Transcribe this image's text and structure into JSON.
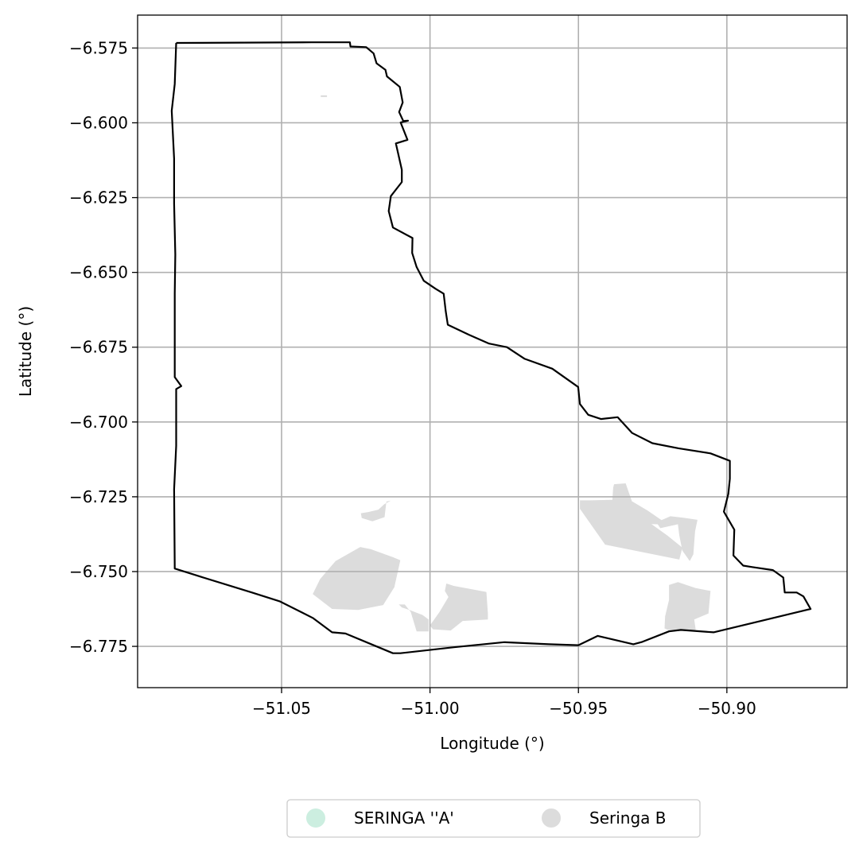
{
  "chart_data": {
    "type": "map",
    "xlabel": "Longitude (°)",
    "ylabel": "Latitude (°)",
    "xlim": [
      -51.0985,
      -50.8595
    ],
    "ylim": [
      -6.7888,
      -6.564
    ],
    "grid": true,
    "x_ticks": [
      {
        "value": -51.05,
        "label": "−51.05"
      },
      {
        "value": -51.0,
        "label": "−51.00"
      },
      {
        "value": -50.95,
        "label": "−50.95"
      },
      {
        "value": -50.9,
        "label": "−50.90"
      }
    ],
    "y_ticks": [
      {
        "value": -6.575,
        "label": "−6.575"
      },
      {
        "value": -6.6,
        "label": "−6.600"
      },
      {
        "value": -6.625,
        "label": "−6.625"
      },
      {
        "value": -6.65,
        "label": "−6.650"
      },
      {
        "value": -6.675,
        "label": "−6.675"
      },
      {
        "value": -6.7,
        "label": "−6.700"
      },
      {
        "value": -6.725,
        "label": "−6.725"
      },
      {
        "value": -6.75,
        "label": "−6.750"
      },
      {
        "value": -6.775,
        "label": "−6.775"
      }
    ],
    "legend": {
      "placement": "bottom-center",
      "entries": [
        {
          "label": "SERINGA ''A'",
          "color": "#cceee0"
        },
        {
          "label": "Seringa B",
          "color": "#dcdcdc"
        }
      ]
    },
    "boundary": [
      [
        -51.0855,
        -6.5733
      ],
      [
        -51.04,
        -6.5731
      ],
      [
        -51.027,
        -6.5731
      ],
      [
        -51.0268,
        -6.5745
      ],
      [
        -51.0215,
        -6.5747
      ],
      [
        -51.019,
        -6.5768
      ],
      [
        -51.018,
        -6.5801
      ],
      [
        -51.015,
        -6.5823
      ],
      [
        -51.0145,
        -6.5845
      ],
      [
        -51.0102,
        -6.588
      ],
      [
        -51.0092,
        -6.5932
      ],
      [
        -51.0104,
        -6.5964
      ],
      [
        -51.009,
        -6.5994
      ],
      [
        -51.0074,
        -6.5993
      ],
      [
        -51.0099,
        -6.5999
      ],
      [
        -51.0076,
        -6.6057
      ],
      [
        -51.0115,
        -6.6069
      ],
      [
        -51.0095,
        -6.6157
      ],
      [
        -51.0095,
        -6.6198
      ],
      [
        -51.0132,
        -6.6245
      ],
      [
        -51.0139,
        -6.6295
      ],
      [
        -51.0125,
        -6.635
      ],
      [
        -51.0059,
        -6.6385
      ],
      [
        -51.006,
        -6.6435
      ],
      [
        -51.0045,
        -6.6482
      ],
      [
        -51.0021,
        -6.6528
      ],
      [
        -50.9981,
        -6.6555
      ],
      [
        -50.9954,
        -6.6571
      ],
      [
        -50.9947,
        -6.663
      ],
      [
        -50.994,
        -6.6675
      ],
      [
        -50.9868,
        -6.6709
      ],
      [
        -50.9801,
        -6.6738
      ],
      [
        -50.9741,
        -6.675
      ],
      [
        -50.9681,
        -6.6789
      ],
      [
        -50.9588,
        -6.6822
      ],
      [
        -50.9501,
        -6.6883
      ],
      [
        -50.9495,
        -6.694
      ],
      [
        -50.9467,
        -6.6976
      ],
      [
        -50.9424,
        -6.699
      ],
      [
        -50.9368,
        -6.6984
      ],
      [
        -50.9319,
        -6.7037
      ],
      [
        -50.9251,
        -6.7071
      ],
      [
        -50.9163,
        -6.7088
      ],
      [
        -50.9055,
        -6.7105
      ],
      [
        -50.899,
        -6.713
      ],
      [
        -50.899,
        -6.719
      ],
      [
        -50.8995,
        -6.724
      ],
      [
        -50.901,
        -6.73
      ],
      [
        -50.8975,
        -6.736
      ],
      [
        -50.8978,
        -6.7446
      ],
      [
        -50.8945,
        -6.748
      ],
      [
        -50.8915,
        -6.7485
      ],
      [
        -50.8845,
        -6.7495
      ],
      [
        -50.881,
        -6.752
      ],
      [
        -50.8805,
        -6.757
      ],
      [
        -50.8765,
        -6.757
      ],
      [
        -50.8742,
        -6.7583
      ],
      [
        -50.8718,
        -6.7625
      ],
      [
        -50.8885,
        -6.7665
      ],
      [
        -50.9045,
        -6.7703
      ],
      [
        -50.9155,
        -6.7695
      ],
      [
        -50.9195,
        -6.77
      ],
      [
        -50.9285,
        -6.7735
      ],
      [
        -50.9315,
        -6.7743
      ],
      [
        -50.9435,
        -6.7715
      ],
      [
        -50.95,
        -6.7746
      ],
      [
        -50.96,
        -6.7743
      ],
      [
        -50.975,
        -6.7736
      ],
      [
        -50.992,
        -6.7753
      ],
      [
        -51.01,
        -6.7773
      ],
      [
        -51.0125,
        -6.7773
      ],
      [
        -51.0195,
        -6.7744
      ],
      [
        -51.0285,
        -6.7707
      ],
      [
        -51.033,
        -6.7703
      ],
      [
        -51.0395,
        -6.7655
      ],
      [
        -51.0505,
        -6.76
      ],
      [
        -51.06,
        -6.757
      ],
      [
        -51.078,
        -6.7515
      ],
      [
        -51.086,
        -6.749
      ],
      [
        -51.0862,
        -6.7225
      ],
      [
        -51.0855,
        -6.708
      ],
      [
        -51.0855,
        -6.6965
      ],
      [
        -51.0855,
        -6.689
      ],
      [
        -51.0838,
        -6.688
      ],
      [
        -51.086,
        -6.685
      ],
      [
        -51.086,
        -6.667
      ],
      [
        -51.086,
        -6.657
      ],
      [
        -51.0858,
        -6.644
      ],
      [
        -51.0862,
        -6.627
      ],
      [
        -51.0862,
        -6.612
      ],
      [
        -51.087,
        -6.596
      ],
      [
        -51.086,
        -6.587
      ],
      [
        -51.0855,
        -6.5733
      ]
    ],
    "patches": [
      {
        "series": "Seringa B",
        "points": [
          [
            -51.0368,
            -6.5908
          ],
          [
            -51.0347,
            -6.5908
          ],
          [
            -51.0347,
            -6.5914
          ],
          [
            -51.0368,
            -6.5914
          ]
        ]
      },
      {
        "series": "Seringa B",
        "points": [
          [
            -51.0235,
            -6.7418
          ],
          [
            -51.02,
            -6.7425
          ],
          [
            -51.0125,
            -6.7452
          ],
          [
            -51.01,
            -6.7462
          ],
          [
            -51.012,
            -6.7552
          ],
          [
            -51.0158,
            -6.7612
          ],
          [
            -51.0242,
            -6.7628
          ],
          [
            -51.033,
            -6.7625
          ],
          [
            -51.0395,
            -6.7575
          ],
          [
            -51.037,
            -6.7525
          ],
          [
            -51.0318,
            -6.7465
          ]
        ]
      },
      {
        "series": "Seringa B",
        "points": [
          [
            -51.0132,
            -6.7263
          ],
          [
            -51.0147,
            -6.7266
          ],
          [
            -51.0153,
            -6.7318
          ],
          [
            -51.0194,
            -6.7332
          ],
          [
            -51.023,
            -6.7321
          ],
          [
            -51.0233,
            -6.7305
          ],
          [
            -51.0208,
            -6.7301
          ],
          [
            -51.0174,
            -6.7293
          ],
          [
            -51.0154,
            -6.7275
          ]
        ]
      },
      {
        "series": "Seringa B",
        "points": [
          [
            -51.0105,
            -6.761
          ],
          [
            -51.0085,
            -6.761
          ],
          [
            -51.0065,
            -6.7635
          ],
          [
            -51.0045,
            -6.77
          ],
          [
            -51.0005,
            -6.77
          ],
          [
            -51.0005,
            -6.766
          ],
          [
            -51.0025,
            -6.7645
          ],
          [
            -51.0065,
            -6.763
          ],
          [
            -51.0095,
            -6.762
          ]
        ]
      },
      {
        "series": "Seringa B",
        "points": [
          [
            -50.9945,
            -6.754
          ],
          [
            -50.992,
            -6.7548
          ],
          [
            -50.981,
            -6.7568
          ],
          [
            -50.9805,
            -6.764
          ],
          [
            -50.9805,
            -6.766
          ],
          [
            -50.989,
            -6.7665
          ],
          [
            -50.993,
            -6.7697
          ],
          [
            -50.999,
            -6.7693
          ],
          [
            -51.0,
            -6.768
          ],
          [
            -50.9968,
            -6.7635
          ],
          [
            -50.9938,
            -6.7585
          ],
          [
            -50.995,
            -6.7565
          ]
        ]
      },
      {
        "series": "Seringa B",
        "points": [
          [
            -50.939,
            -6.7328
          ],
          [
            -50.9341,
            -6.7325
          ],
          [
            -50.9297,
            -6.734
          ],
          [
            -50.9233,
            -6.7342
          ],
          [
            -50.9224,
            -6.7355
          ],
          [
            -50.9165,
            -6.7342
          ],
          [
            -50.916,
            -6.738
          ],
          [
            -50.915,
            -6.743
          ],
          [
            -50.9125,
            -6.7465
          ],
          [
            -50.9113,
            -6.7442
          ],
          [
            -50.9107,
            -6.7365
          ],
          [
            -50.9099,
            -6.7327
          ],
          [
            -50.9147,
            -6.732
          ],
          [
            -50.919,
            -6.7315
          ],
          [
            -50.922,
            -6.7328
          ],
          [
            -50.9267,
            -6.7296
          ],
          [
            -50.932,
            -6.7265
          ],
          [
            -50.9341,
            -6.7205
          ],
          [
            -50.938,
            -6.7208
          ],
          [
            -50.9383,
            -6.722
          ]
        ]
      },
      {
        "series": "Seringa B",
        "points": [
          [
            -50.9495,
            -6.7262
          ],
          [
            -50.946,
            -6.7262
          ],
          [
            -50.938,
            -6.726
          ],
          [
            -50.938,
            -6.723
          ],
          [
            -50.933,
            -6.7255
          ],
          [
            -50.927,
            -6.733
          ],
          [
            -50.92,
            -6.738
          ],
          [
            -50.915,
            -6.742
          ],
          [
            -50.916,
            -6.746
          ],
          [
            -50.926,
            -6.744
          ],
          [
            -50.941,
            -6.741
          ],
          [
            -50.9495,
            -6.729
          ]
        ]
      },
      {
        "series": "Seringa B",
        "points": [
          [
            -50.9195,
            -6.7545
          ],
          [
            -50.9165,
            -6.7535
          ],
          [
            -50.9105,
            -6.7555
          ],
          [
            -50.9055,
            -6.7565
          ],
          [
            -50.9062,
            -6.764
          ],
          [
            -50.911,
            -6.766
          ],
          [
            -50.9105,
            -6.7695
          ],
          [
            -50.9185,
            -6.77
          ],
          [
            -50.921,
            -6.769
          ],
          [
            -50.9208,
            -6.765
          ],
          [
            -50.9195,
            -6.7595
          ]
        ]
      }
    ]
  }
}
